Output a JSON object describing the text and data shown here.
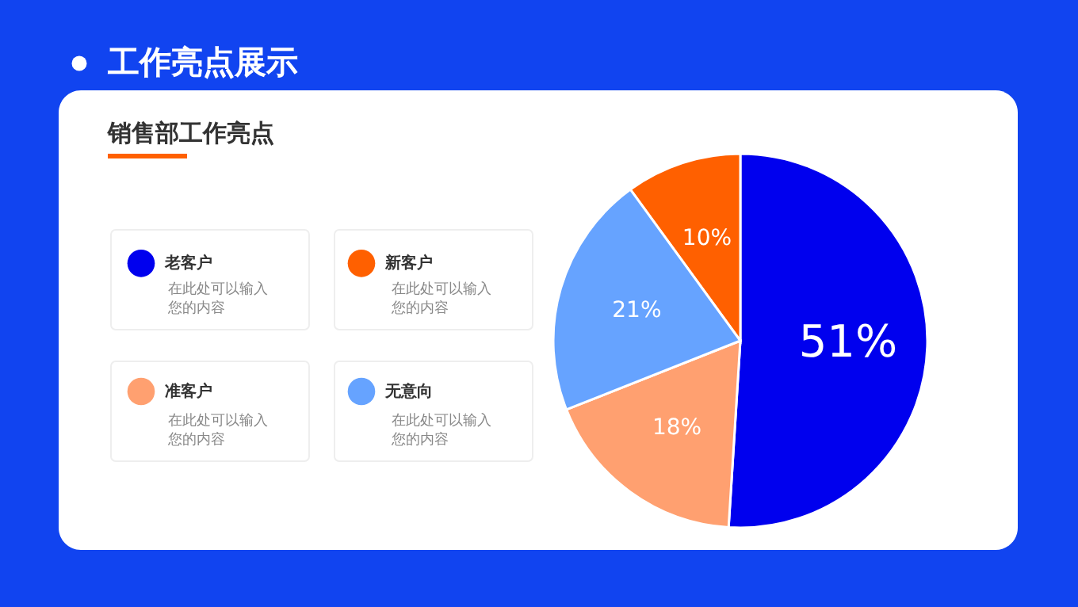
{
  "chart_data": {
    "type": "pie",
    "title": "工作亮点展示",
    "subtitle": "销售部工作亮点",
    "categories": [
      "老客户",
      "新客户",
      "准客户",
      "无意向"
    ],
    "values": [
      51,
      10,
      18,
      21
    ],
    "colors": [
      "#0000ee",
      "#ff6000",
      "#ffa070",
      "#66a3ff"
    ],
    "value_labels": [
      "51%",
      "10%",
      "18%",
      "21%"
    ],
    "legend": "left",
    "annotations": [
      "在此处可以输入您的内容",
      "在此处可以输入您的内容",
      "在此处可以输入您的内容",
      "在此处可以输入您的内容"
    ]
  }
}
